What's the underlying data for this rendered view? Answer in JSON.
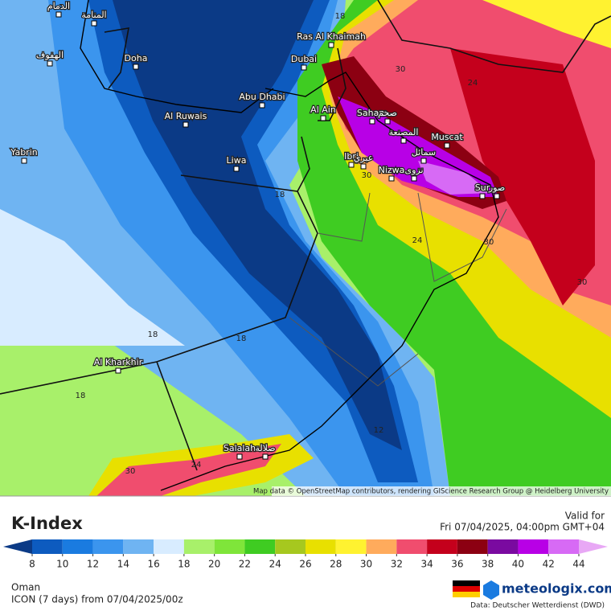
{
  "map": {
    "attribution": "Map data © OpenStreetMap contributors, rendering GIScience Research Group @ Heidelberg University",
    "places": [
      "الدمام",
      "المنامة",
      "الهفوف",
      "Doha",
      "Ras Al Khaimah",
      "Dubai",
      "Abu Dhabi",
      "Al Ruwais",
      "Al Ain",
      "Saham",
      "صحم",
      "المصنعة",
      "Muscat",
      "سمائل",
      "Ibri",
      "عبري",
      "Nizwa",
      "نزوى",
      "Sur",
      "صور",
      "Liwa",
      "Yabrin",
      "Al Kharkhir",
      "Salalah",
      "صلالة"
    ],
    "contour_labels": [
      "18",
      "30",
      "24",
      "18",
      "30",
      "24",
      "30",
      "30",
      "18",
      "18",
      "18",
      "12",
      "30",
      "24"
    ]
  },
  "legend": {
    "title": "K-Index",
    "valid_label": "Valid for",
    "valid_time": "Fri 07/04/2025, 04:00pm GMT+04",
    "colorbar": {
      "colors": [
        "#0b3a86",
        "#0d5bbf",
        "#1a7be0",
        "#3b95ee",
        "#6fb4f2",
        "#d8ecff",
        "#a8f06a",
        "#7fe53a",
        "#3fcc22",
        "#a6c81f",
        "#e8e000",
        "#fff230",
        "#ffab5c",
        "#f04d6e",
        "#c4001c",
        "#8c0012",
        "#7a0aa0",
        "#b800e6",
        "#d76af5",
        "#e8a8f5"
      ],
      "ticks": [
        8,
        10,
        12,
        14,
        16,
        18,
        20,
        22,
        24,
        26,
        28,
        30,
        32,
        34,
        36,
        38,
        40,
        42,
        44
      ]
    }
  },
  "footer": {
    "region": "Oman",
    "model": "ICON (7 days) from 07/04/2025/00z",
    "brand": "meteologix.com",
    "source": "Data: Deutscher Wetterdienst (DWD)"
  }
}
